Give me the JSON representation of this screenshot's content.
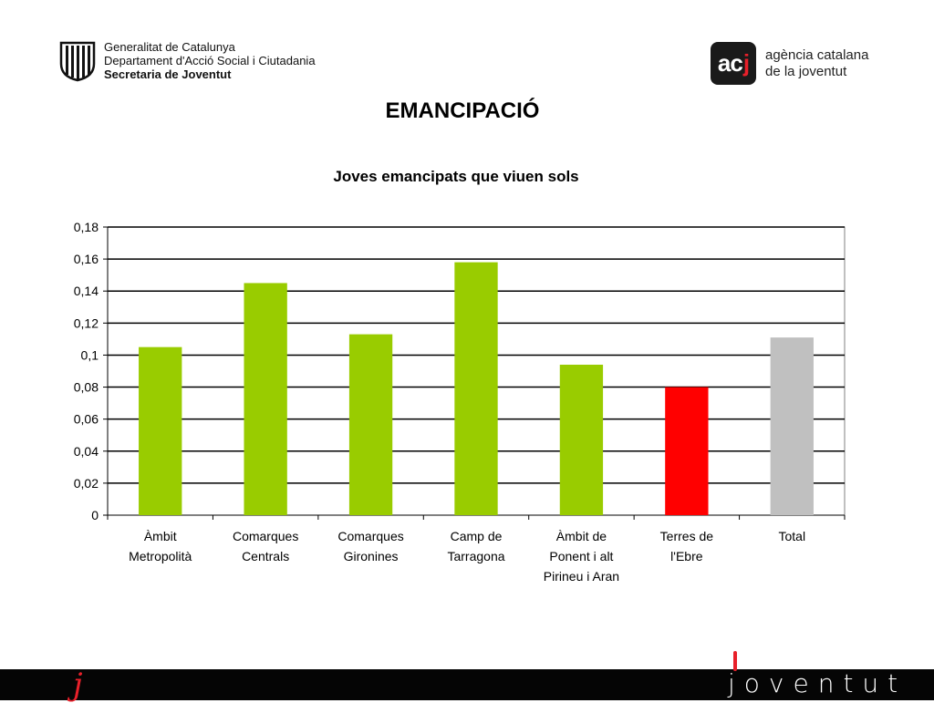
{
  "header": {
    "gen_lines": [
      "Generalitat de Catalunya",
      "Departament d'Acció Social i Ciutadania",
      "Secretaria de Joventut"
    ],
    "acj_box": "ac",
    "acj_box_j": "j",
    "acj_lines": [
      "agència catalana",
      "de la joventut"
    ]
  },
  "page_title": "EMANCIPACIÓ",
  "footer": {
    "left_mark": "j",
    "brand": "joventut"
  },
  "colors": {
    "green": "#99cc00",
    "red": "#ff0000",
    "grey": "#c0c0c0"
  },
  "chart_data": {
    "type": "bar",
    "title": "Joves emancipats que viuen sols",
    "xlabel": "",
    "ylabel": "",
    "categories": [
      [
        "Àmbit",
        "Metropolità"
      ],
      [
        "Comarques",
        "Centrals"
      ],
      [
        "Comarques",
        "Gironines"
      ],
      [
        "Camp de",
        "Tarragona"
      ],
      [
        "Àmbit de",
        "Ponent i alt",
        "Pirineu i Aran"
      ],
      [
        "Terres de",
        "l'Ebre"
      ],
      [
        "Total"
      ]
    ],
    "values": [
      0.105,
      0.145,
      0.113,
      0.158,
      0.094,
      0.08,
      0.111
    ],
    "bar_colors": [
      "#99cc00",
      "#99cc00",
      "#99cc00",
      "#99cc00",
      "#99cc00",
      "#ff0000",
      "#c0c0c0"
    ],
    "ylim": [
      0,
      0.18
    ],
    "yticks": [
      "0",
      "0,02",
      "0,04",
      "0,06",
      "0,08",
      "0,1",
      "0,12",
      "0,14",
      "0,16",
      "0,18"
    ],
    "grid": true,
    "legend": "none"
  }
}
